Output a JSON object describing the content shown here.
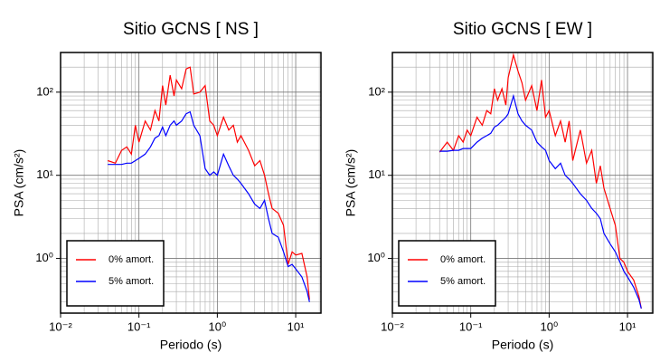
{
  "chart_data": [
    {
      "type": "line",
      "title": "Sitio GCNS [ NS ]",
      "x_label": "Periodo (s)",
      "y_label": "PSA (cm/s²)",
      "x": [
        0.04,
        0.05,
        0.06,
        0.07,
        0.08,
        0.09,
        0.1,
        0.12,
        0.14,
        0.16,
        0.18,
        0.2,
        0.22,
        0.25,
        0.28,
        0.3,
        0.35,
        0.4,
        0.45,
        0.5,
        0.6,
        0.7,
        0.8,
        0.9,
        1.0,
        1.2,
        1.4,
        1.6,
        1.8,
        2.0,
        2.5,
        3,
        3.5,
        4,
        4.5,
        5,
        6,
        7,
        8,
        9,
        10,
        12,
        14,
        15
      ],
      "series": [
        {
          "name": "0% amort.",
          "color": "#ff0000",
          "values": [
            15,
            14,
            20,
            22,
            18,
            40,
            25,
            45,
            35,
            60,
            45,
            120,
            70,
            160,
            90,
            140,
            110,
            190,
            200,
            95,
            100,
            120,
            45,
            40,
            30,
            50,
            35,
            40,
            25,
            30,
            20,
            13,
            15,
            10,
            6,
            4,
            3.5,
            2.5,
            0.85,
            1.2,
            1.1,
            1.15,
            0.6,
            0.32
          ]
        },
        {
          "name": "5% amort.",
          "color": "#0000ff",
          "values": [
            13.5,
            13.5,
            13.5,
            14,
            14,
            15,
            16,
            18,
            22,
            28,
            30,
            38,
            30,
            40,
            45,
            40,
            45,
            55,
            58,
            40,
            30,
            12,
            10,
            11,
            10,
            18,
            13,
            10,
            9,
            8,
            6,
            4.5,
            4,
            5,
            3,
            2,
            1.8,
            1.2,
            0.8,
            0.85,
            0.75,
            0.6,
            0.4,
            0.3
          ]
        }
      ],
      "xlim": [
        0.01,
        21
      ],
      "ylim": [
        0.22,
        300
      ],
      "xscale": "log",
      "yscale": "log",
      "xticks": [
        {
          "value": 0.01,
          "label": "10⁻²"
        },
        {
          "value": 0.1,
          "label": "10⁻¹"
        },
        {
          "value": 1,
          "label": "10⁰"
        },
        {
          "value": 10,
          "label": "10¹"
        }
      ],
      "yticks": [
        {
          "value": 1,
          "label": "10⁰"
        },
        {
          "value": 10,
          "label": "10¹"
        },
        {
          "value": 100,
          "label": "10²"
        }
      ],
      "grid": true,
      "legend": "lower left"
    },
    {
      "type": "line",
      "title": "Sitio GCNS [ EW ]",
      "x_label": "Periodo (s)",
      "y_label": "PSA (cm/s²)",
      "x": [
        0.04,
        0.05,
        0.06,
        0.07,
        0.08,
        0.09,
        0.1,
        0.12,
        0.14,
        0.16,
        0.18,
        0.2,
        0.22,
        0.25,
        0.28,
        0.3,
        0.35,
        0.4,
        0.45,
        0.5,
        0.6,
        0.7,
        0.8,
        0.9,
        1.0,
        1.2,
        1.4,
        1.6,
        1.8,
        2.0,
        2.5,
        3,
        3.5,
        4,
        4.5,
        5,
        6,
        7,
        8,
        9,
        10,
        12,
        14,
        15
      ],
      "series": [
        {
          "name": "0% amort.",
          "color": "#ff0000",
          "values": [
            19,
            25,
            20,
            30,
            25,
            35,
            30,
            50,
            40,
            60,
            55,
            110,
            80,
            110,
            70,
            150,
            280,
            180,
            130,
            80,
            120,
            60,
            140,
            50,
            60,
            30,
            45,
            25,
            45,
            15,
            35,
            14,
            20,
            8,
            13,
            7,
            4,
            2.5,
            1.0,
            0.9,
            0.7,
            0.55,
            0.35,
            0.25
          ]
        },
        {
          "name": "5% amort.",
          "color": "#0000ff",
          "values": [
            19.5,
            19.5,
            20,
            20,
            21,
            21,
            21,
            25,
            28,
            30,
            32,
            38,
            40,
            45,
            50,
            55,
            90,
            55,
            45,
            40,
            35,
            25,
            22,
            20,
            15,
            12,
            14,
            10,
            9,
            8,
            6,
            5,
            4,
            3.5,
            3,
            2,
            1.5,
            1.2,
            0.9,
            0.7,
            0.6,
            0.45,
            0.32,
            0.25
          ]
        }
      ],
      "xlim": [
        0.01,
        21
      ],
      "ylim": [
        0.22,
        300
      ],
      "xscale": "log",
      "yscale": "log",
      "xticks": [
        {
          "value": 0.01,
          "label": "10⁻²"
        },
        {
          "value": 0.1,
          "label": "10⁻¹"
        },
        {
          "value": 1,
          "label": "10⁰"
        },
        {
          "value": 10,
          "label": "10¹"
        }
      ],
      "yticks": [
        {
          "value": 1,
          "label": "10⁰"
        },
        {
          "value": 10,
          "label": "10¹"
        },
        {
          "value": 100,
          "label": "10²"
        }
      ],
      "grid": true,
      "legend": "lower left"
    }
  ]
}
